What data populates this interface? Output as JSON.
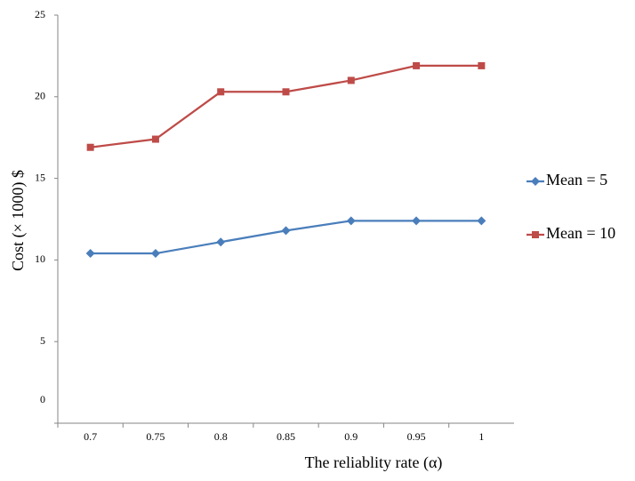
{
  "chart_data": {
    "type": "line",
    "x_label": "The reliablity rate (α)",
    "y_label": "Cost (× 1000)  $",
    "categories": [
      "0.7",
      "0.75",
      "0.8",
      "0.85",
      "0.9",
      "0.95",
      "1"
    ],
    "series": [
      {
        "name": "Mean = 5",
        "color": "#4a7ebb",
        "marker": "diamond",
        "values": [
          10.4,
          10.4,
          11.1,
          11.8,
          12.4,
          12.4,
          12.4
        ]
      },
      {
        "name": "Mean = 10",
        "color": "#be4b48",
        "marker": "square",
        "values": [
          16.9,
          17.4,
          20.3,
          20.3,
          21.0,
          21.9,
          21.9
        ]
      }
    ],
    "ylim": [
      0,
      25
    ],
    "yticks": [
      0,
      5,
      10,
      15,
      20,
      25
    ],
    "grid": false,
    "legend": "right"
  }
}
